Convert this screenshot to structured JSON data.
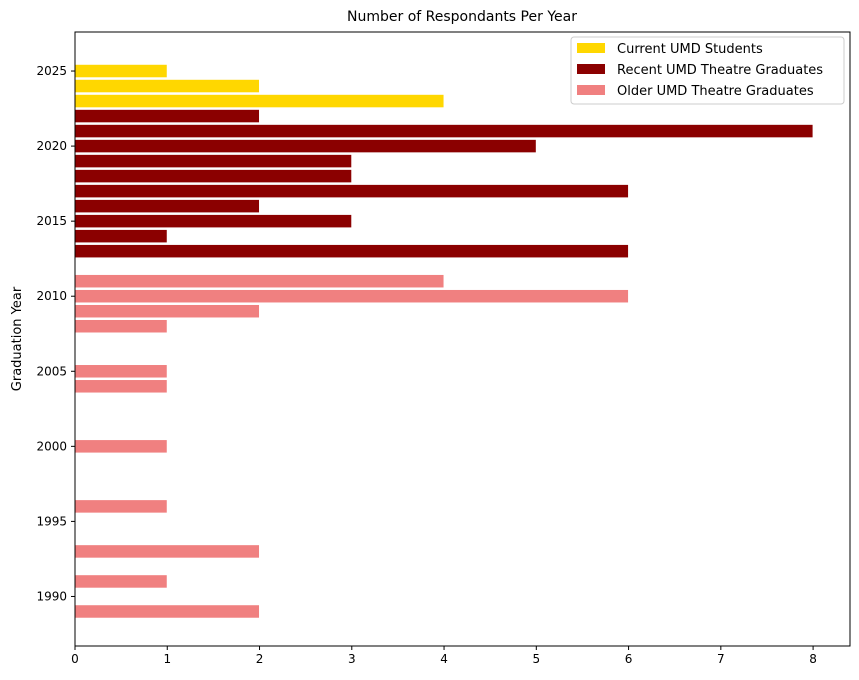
{
  "chart_data": {
    "type": "bar",
    "orientation": "horizontal",
    "title": "Number of Respondants Per Year",
    "xlabel": "",
    "ylabel": "Graduation Year",
    "xlim": [
      0,
      8.4
    ],
    "ylim": [
      1986.7,
      2027.6
    ],
    "x_ticks": [
      0,
      1,
      2,
      3,
      4,
      5,
      6,
      7,
      8
    ],
    "y_ticks": [
      1990,
      1995,
      2000,
      2005,
      2010,
      2015,
      2020,
      2025
    ],
    "grid": false,
    "legend_position": "top-right",
    "series": [
      {
        "name": "Current UMD Students",
        "color": "#FFD700",
        "points": [
          {
            "year": 2025,
            "count": 1
          },
          {
            "year": 2024,
            "count": 2
          },
          {
            "year": 2023,
            "count": 4
          }
        ]
      },
      {
        "name": "Recent UMD Theatre Graduates",
        "color": "#8B0000",
        "points": [
          {
            "year": 2022,
            "count": 2
          },
          {
            "year": 2021,
            "count": 8
          },
          {
            "year": 2020,
            "count": 5
          },
          {
            "year": 2019,
            "count": 3
          },
          {
            "year": 2018,
            "count": 3
          },
          {
            "year": 2017,
            "count": 6
          },
          {
            "year": 2016,
            "count": 2
          },
          {
            "year": 2015,
            "count": 3
          },
          {
            "year": 2014,
            "count": 1
          },
          {
            "year": 2013,
            "count": 6
          }
        ]
      },
      {
        "name": "Older UMD Theatre Graduates",
        "color": "#F08080",
        "points": [
          {
            "year": 2011,
            "count": 4
          },
          {
            "year": 2010,
            "count": 6
          },
          {
            "year": 2009,
            "count": 2
          },
          {
            "year": 2008,
            "count": 1
          },
          {
            "year": 2005,
            "count": 1
          },
          {
            "year": 2004,
            "count": 1
          },
          {
            "year": 2000,
            "count": 1
          },
          {
            "year": 1996,
            "count": 1
          },
          {
            "year": 1993,
            "count": 2
          },
          {
            "year": 1991,
            "count": 1
          },
          {
            "year": 1989,
            "count": 2
          }
        ]
      }
    ]
  }
}
